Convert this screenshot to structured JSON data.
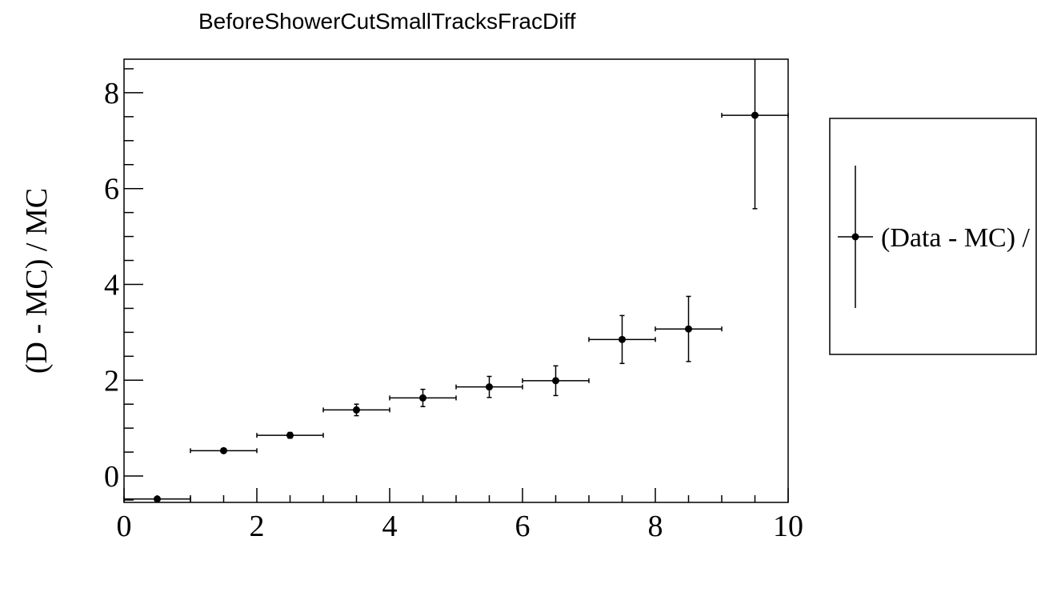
{
  "chart_data": {
    "type": "scatter",
    "title": "BeforeShowerCutSmallTracksFracDiff",
    "xlabel": "",
    "ylabel": "(D - MC) / MC",
    "xlim": [
      0,
      10
    ],
    "ylim": [
      -0.55,
      8.7
    ],
    "xticks": [
      "0",
      "2",
      "4",
      "6",
      "8",
      "10"
    ],
    "yticks": [
      "0",
      "2",
      "4",
      "6",
      "8"
    ],
    "grid": false,
    "legend_placement": "right",
    "series": [
      {
        "name": "(Data - MC) /",
        "color": "#000000",
        "x": [
          0.5,
          1.5,
          2.5,
          3.5,
          4.5,
          5.5,
          6.5,
          7.5,
          8.5,
          9.5
        ],
        "x_err": [
          0.5,
          0.5,
          0.5,
          0.5,
          0.5,
          0.5,
          0.5,
          0.5,
          0.5,
          0.5
        ],
        "y": [
          -0.48,
          0.53,
          0.85,
          1.38,
          1.63,
          1.86,
          1.99,
          2.85,
          3.07,
          7.53
        ],
        "y_err_low": [
          0.0,
          0.03,
          0.06,
          0.12,
          0.18,
          0.22,
          0.31,
          0.5,
          0.68,
          1.95
        ],
        "y_err_high": [
          0.0,
          0.03,
          0.06,
          0.12,
          0.18,
          0.22,
          0.31,
          0.5,
          0.68,
          1.95
        ]
      }
    ]
  }
}
